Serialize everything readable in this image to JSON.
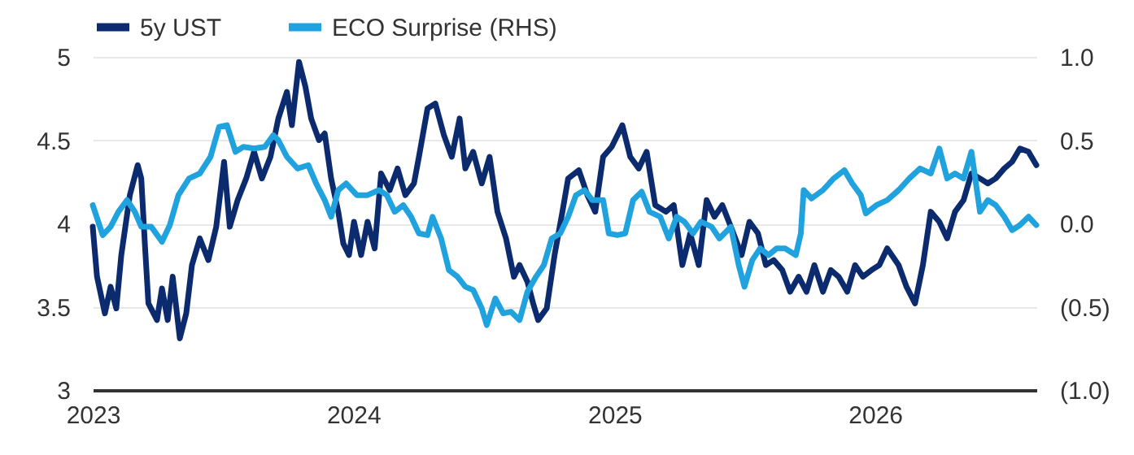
{
  "chart_data": {
    "type": "line",
    "xlim": [
      "2023-01-01",
      "2026-08-15"
    ],
    "xticks": [
      "2023",
      "2024",
      "2025",
      "2026"
    ],
    "ylim": [
      3,
      5
    ],
    "yticks": [
      3,
      3.5,
      4,
      4.5,
      5
    ],
    "y2lim": [
      -1,
      1
    ],
    "y2ticks": [
      {
        "value": -1,
        "label": "(1.0)"
      },
      {
        "value": -0.5,
        "label": "(0.5)"
      },
      {
        "value": 0,
        "label": "0.0"
      },
      {
        "value": 0.5,
        "label": "0.5"
      },
      {
        "value": 1,
        "label": "1.0"
      }
    ],
    "grid": "y",
    "legend": "top",
    "line_style": "solid",
    "marker": "none",
    "series": [
      {
        "name": "5y UST",
        "color": "#0c2b6e",
        "x": [
          "2023-01-01",
          "2023-01-07",
          "2023-01-18",
          "2023-01-26",
          "2023-02-03",
          "2023-02-10",
          "2023-02-22",
          "2023-03-05",
          "2023-03-10",
          "2023-03-15",
          "2023-03-20",
          "2023-04-01",
          "2023-04-08",
          "2023-04-16",
          "2023-04-23",
          "2023-05-03",
          "2023-05-12",
          "2023-05-20",
          "2023-05-31",
          "2023-06-12",
          "2023-06-23",
          "2023-07-04",
          "2023-07-12",
          "2023-07-23",
          "2023-08-04",
          "2023-08-15",
          "2023-08-26",
          "2023-09-07",
          "2023-09-18",
          "2023-09-30",
          "2023-10-07",
          "2023-10-17",
          "2023-10-26",
          "2023-11-03",
          "2023-11-14",
          "2023-11-22",
          "2023-12-01",
          "2023-12-11",
          "2023-12-18",
          "2023-12-26",
          "2024-01-02",
          "2024-01-12",
          "2024-01-21",
          "2024-01-31",
          "2024-02-09",
          "2024-02-21",
          "2024-03-03",
          "2024-03-14",
          "2024-03-26",
          "2024-04-02",
          "2024-04-14",
          "2024-04-25",
          "2024-05-07",
          "2024-05-18",
          "2024-05-29",
          "2024-06-06",
          "2024-06-17",
          "2024-06-29",
          "2024-07-10",
          "2024-07-21",
          "2024-08-02",
          "2024-08-13",
          "2024-08-21",
          "2024-09-01",
          "2024-09-09",
          "2024-09-16",
          "2024-09-28",
          "2024-10-09",
          "2024-10-20",
          "2024-10-28",
          "2024-11-12",
          "2024-11-24",
          "2024-12-05",
          "2024-12-16",
          "2024-12-28",
          "2025-01-12",
          "2025-01-23",
          "2025-02-04",
          "2025-02-15",
          "2025-02-27",
          "2025-03-14",
          "2025-03-25",
          "2025-04-06",
          "2025-04-17",
          "2025-04-29",
          "2025-05-10",
          "2025-05-21",
          "2025-06-01",
          "2025-06-13",
          "2025-06-28",
          "2025-07-09",
          "2025-07-21",
          "2025-08-01",
          "2025-08-12",
          "2025-08-24",
          "2025-09-04",
          "2025-09-16",
          "2025-09-27",
          "2025-10-08",
          "2025-10-20",
          "2025-10-31",
          "2025-11-11",
          "2025-11-23",
          "2025-12-04",
          "2025-12-15",
          "2025-12-27",
          "2026-01-07",
          "2026-01-18",
          "2026-02-03",
          "2026-02-14",
          "2026-02-26",
          "2026-03-09",
          "2026-03-20",
          "2026-04-01",
          "2026-04-12",
          "2026-04-23",
          "2026-05-05",
          "2026-05-16",
          "2026-05-28",
          "2026-06-08",
          "2026-06-19",
          "2026-07-01",
          "2026-07-12",
          "2026-07-23",
          "2026-08-04",
          "2026-08-15"
        ],
        "values": [
          3.98,
          3.68,
          3.46,
          3.62,
          3.49,
          3.81,
          4.17,
          4.35,
          4.27,
          3.88,
          3.52,
          3.42,
          3.61,
          3.42,
          3.68,
          3.31,
          3.46,
          3.75,
          3.91,
          3.78,
          3.98,
          4.37,
          3.98,
          4.14,
          4.27,
          4.43,
          4.27,
          4.4,
          4.63,
          4.79,
          4.59,
          4.97,
          4.82,
          4.63,
          4.5,
          4.54,
          4.27,
          4.07,
          3.88,
          3.81,
          4.01,
          3.81,
          4.01,
          3.85,
          4.3,
          4.2,
          4.33,
          4.17,
          4.24,
          4.4,
          4.69,
          4.72,
          4.53,
          4.4,
          4.63,
          4.33,
          4.43,
          4.24,
          4.4,
          4.07,
          3.91,
          3.68,
          3.75,
          3.65,
          3.52,
          3.42,
          3.49,
          3.81,
          4.07,
          4.27,
          4.32,
          4.17,
          4.07,
          4.4,
          4.46,
          4.59,
          4.4,
          4.33,
          4.43,
          4.11,
          4.07,
          4.11,
          3.75,
          3.94,
          3.75,
          4.14,
          4.04,
          4.11,
          3.98,
          3.81,
          4.01,
          3.94,
          3.75,
          3.78,
          3.72,
          3.59,
          3.68,
          3.59,
          3.75,
          3.59,
          3.72,
          3.68,
          3.59,
          3.75,
          3.68,
          3.72,
          3.75,
          3.85,
          3.75,
          3.62,
          3.52,
          3.75,
          4.07,
          4.01,
          3.91,
          4.07,
          4.14,
          4.3,
          4.27,
          4.24,
          4.27,
          4.33,
          4.37,
          4.45,
          4.43,
          4.35
        ]
      },
      {
        "name": "ECO Surprise (RHS)",
        "color": "#1fa2dd",
        "axis": "y2",
        "x": [
          "2023-01-01",
          "2023-01-15",
          "2023-01-26",
          "2023-02-06",
          "2023-02-18",
          "2023-03-01",
          "2023-03-10",
          "2023-03-24",
          "2023-04-08",
          "2023-04-19",
          "2023-05-01",
          "2023-05-16",
          "2023-05-31",
          "2023-06-15",
          "2023-06-27",
          "2023-07-08",
          "2023-07-20",
          "2023-07-31",
          "2023-08-15",
          "2023-08-30",
          "2023-09-11",
          "2023-09-18",
          "2023-09-30",
          "2023-10-15",
          "2023-10-30",
          "2023-11-10",
          "2023-11-22",
          "2023-12-01",
          "2023-12-11",
          "2023-12-22",
          "2024-01-06",
          "2024-01-21",
          "2024-02-06",
          "2024-02-17",
          "2024-02-28",
          "2024-03-11",
          "2024-03-22",
          "2024-04-02",
          "2024-04-14",
          "2024-04-21",
          "2024-05-03",
          "2024-05-14",
          "2024-05-26",
          "2024-06-06",
          "2024-06-17",
          "2024-06-29",
          "2024-07-06",
          "2024-07-18",
          "2024-07-29",
          "2024-08-09",
          "2024-08-21",
          "2024-09-01",
          "2024-09-13",
          "2024-09-24",
          "2024-10-05",
          "2024-10-17",
          "2024-10-28",
          "2024-11-08",
          "2024-11-20",
          "2024-12-01",
          "2024-12-16",
          "2024-12-24",
          "2025-01-05",
          "2025-01-16",
          "2025-01-27",
          "2025-02-08",
          "2025-02-19",
          "2025-03-06",
          "2025-03-18",
          "2025-03-29",
          "2025-04-09",
          "2025-04-21",
          "2025-05-02",
          "2025-05-17",
          "2025-05-28",
          "2025-06-13",
          "2025-06-24",
          "2025-07-02",
          "2025-07-13",
          "2025-07-24",
          "2025-08-05",
          "2025-08-16",
          "2025-08-28",
          "2025-09-12",
          "2025-09-19",
          "2025-09-23",
          "2025-10-04",
          "2025-10-20",
          "2025-11-04",
          "2025-11-19",
          "2025-11-30",
          "2025-12-12",
          "2025-12-19",
          "2026-01-03",
          "2026-01-18",
          "2026-02-03",
          "2026-02-18",
          "2026-03-05",
          "2026-03-20",
          "2026-04-01",
          "2026-04-12",
          "2026-04-23",
          "2026-05-05",
          "2026-05-16",
          "2026-05-28",
          "2026-06-08",
          "2026-06-19",
          "2026-07-01",
          "2026-07-12",
          "2026-07-23",
          "2026-08-04",
          "2026-08-15"
        ],
        "values": [
          0.11,
          -0.07,
          -0.02,
          0.07,
          0.14,
          0.07,
          -0.02,
          -0.02,
          -0.11,
          -0.01,
          0.17,
          0.27,
          0.3,
          0.4,
          0.58,
          0.59,
          0.43,
          0.46,
          0.45,
          0.46,
          0.53,
          0.5,
          0.4,
          0.33,
          0.35,
          0.24,
          0.14,
          0.04,
          0.2,
          0.24,
          0.17,
          0.17,
          0.2,
          0.17,
          0.07,
          0.11,
          0.04,
          -0.06,
          -0.07,
          0.04,
          -0.09,
          -0.28,
          -0.32,
          -0.38,
          -0.4,
          -0.51,
          -0.61,
          -0.45,
          -0.54,
          -0.53,
          -0.58,
          -0.41,
          -0.32,
          -0.25,
          -0.09,
          -0.06,
          0.04,
          0.17,
          0.2,
          0.14,
          0.14,
          -0.06,
          -0.07,
          -0.06,
          0.14,
          0.19,
          0.07,
          0.04,
          -0.09,
          0.04,
          0.01,
          -0.06,
          0.01,
          -0.02,
          -0.09,
          -0.02,
          -0.25,
          -0.38,
          -0.22,
          -0.15,
          -0.19,
          -0.15,
          -0.15,
          -0.19,
          -0.06,
          0.2,
          0.15,
          0.2,
          0.27,
          0.32,
          0.24,
          0.17,
          0.06,
          0.11,
          0.14,
          0.2,
          0.27,
          0.33,
          0.3,
          0.45,
          0.27,
          0.3,
          0.27,
          0.43,
          0.07,
          0.14,
          0.11,
          0.04,
          -0.04,
          -0.01,
          0.04,
          -0.01
        ]
      }
    ]
  }
}
